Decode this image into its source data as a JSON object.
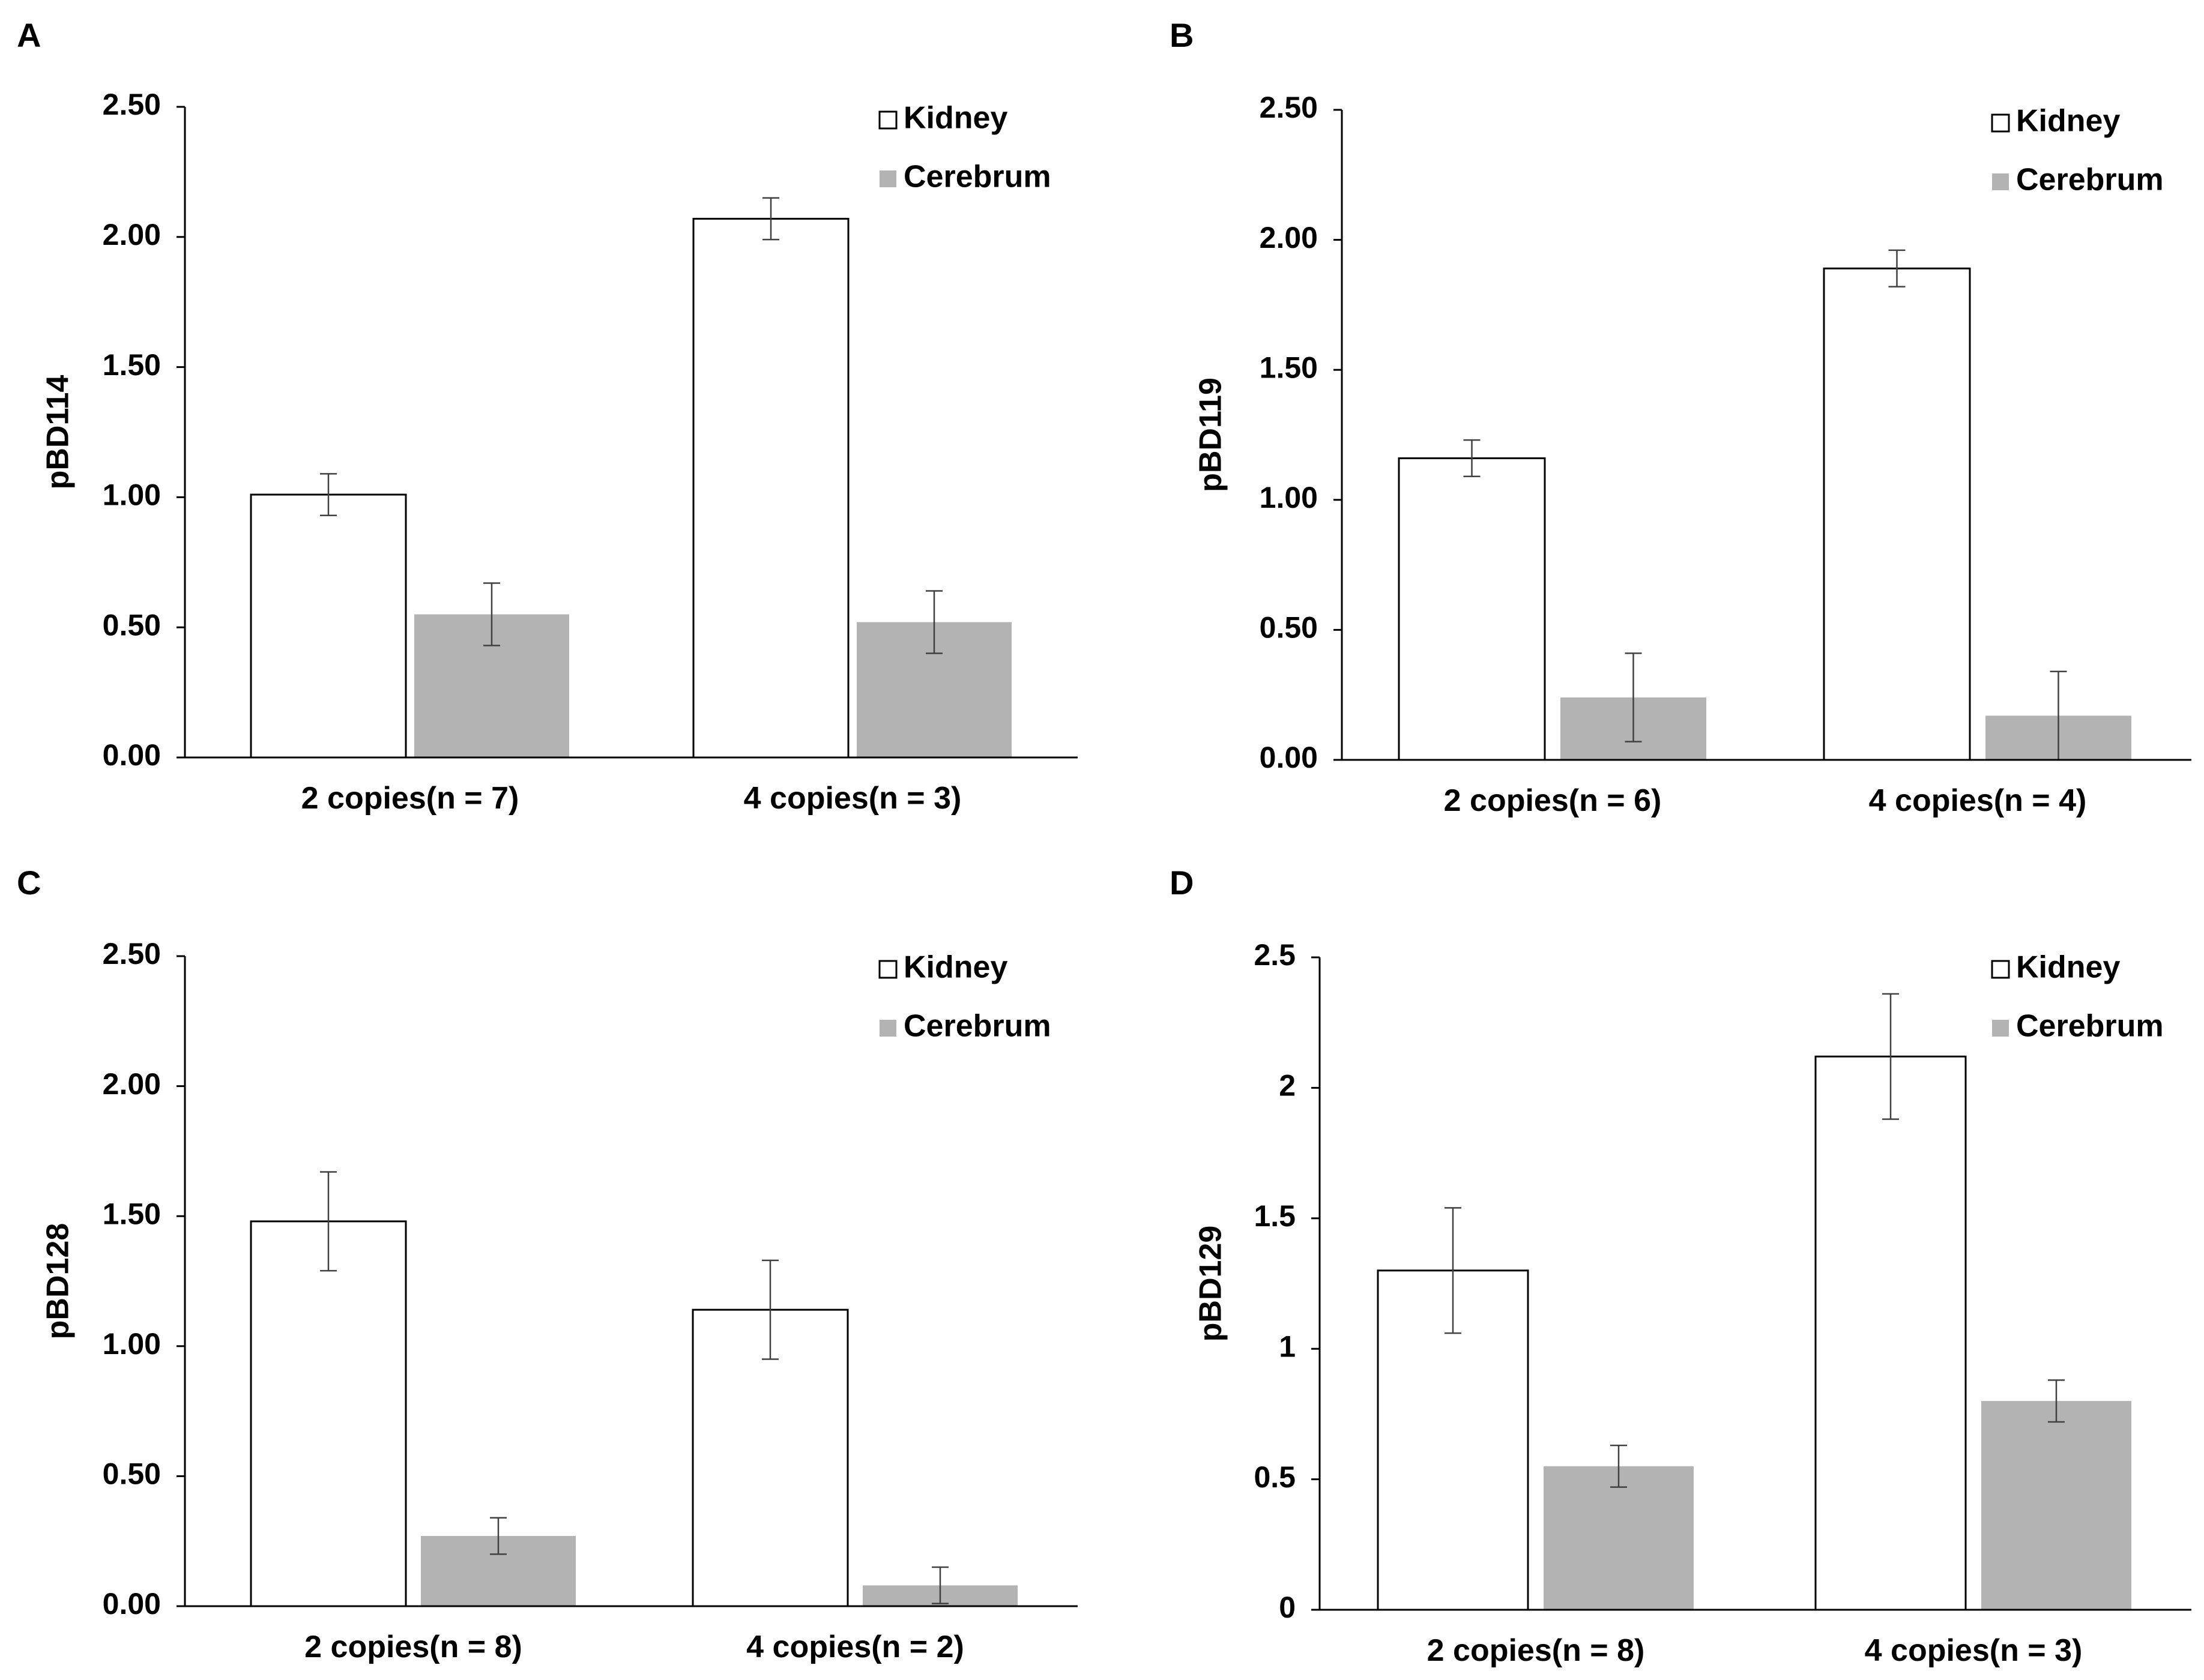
{
  "legend_labels": {
    "kidney": "Kidney",
    "cerebrum": "Cerebrum"
  },
  "colors": {
    "kidney_fill": "#ffffff",
    "kidney_stroke": "#000000",
    "cerebrum_fill": "#b3b3b3",
    "axis": "#000000",
    "error_bar": "#404040"
  },
  "chart_data": [
    {
      "panel": "A",
      "type": "bar",
      "ylabel": "pBD114",
      "ylim": [
        0,
        2.5
      ],
      "yticks": [
        "0.00",
        "0.50",
        "1.00",
        "1.50",
        "2.00",
        "2.50"
      ],
      "categories": [
        "2 copies(n = 7)",
        "4 copies(n = 3)"
      ],
      "legend_position": "top-right",
      "series": [
        {
          "name": "Kidney",
          "values": [
            1.01,
            2.07
          ],
          "errors": [
            0.08,
            0.08
          ]
        },
        {
          "name": "Cerebrum",
          "values": [
            0.55,
            0.52
          ],
          "errors": [
            0.12,
            0.12
          ]
        }
      ]
    },
    {
      "panel": "B",
      "type": "bar",
      "ylabel": "pBD119",
      "ylim": [
        0,
        2.5
      ],
      "yticks": [
        "0.00",
        "0.50",
        "1.00",
        "1.50",
        "2.00",
        "2.50"
      ],
      "categories": [
        "2 copies(n = 6)",
        "4 copies(n = 4)"
      ],
      "legend_position": "top-right",
      "series": [
        {
          "name": "Kidney",
          "values": [
            1.16,
            1.89
          ],
          "errors": [
            0.07,
            0.07
          ]
        },
        {
          "name": "Cerebrum",
          "values": [
            0.24,
            0.17
          ],
          "errors": [
            0.17,
            0.17
          ]
        }
      ]
    },
    {
      "panel": "C",
      "type": "bar",
      "ylabel": "pBD128",
      "ylim": [
        0,
        2.5
      ],
      "yticks": [
        "0.00",
        "0.50",
        "1.00",
        "1.50",
        "2.00",
        "2.50"
      ],
      "categories": [
        "2 copies(n = 8)",
        "4 copies(n = 2)"
      ],
      "legend_position": "top-right",
      "series": [
        {
          "name": "Kidney",
          "values": [
            1.48,
            1.14
          ],
          "errors": [
            0.19,
            0.19
          ]
        },
        {
          "name": "Cerebrum",
          "values": [
            0.27,
            0.08
          ],
          "errors": [
            0.07,
            0.07
          ]
        }
      ]
    },
    {
      "panel": "D",
      "type": "bar",
      "ylabel": "pBD129",
      "ylim": [
        0,
        2.5
      ],
      "yticks": [
        "0",
        "0.5",
        "1",
        "1.5",
        "2",
        "2.5"
      ],
      "categories": [
        "2 copies(n = 8)",
        "4 copies(n = 3)"
      ],
      "legend_position": "top-right",
      "series": [
        {
          "name": "Kidney",
          "values": [
            1.3,
            2.12
          ],
          "errors": [
            0.24,
            0.24
          ]
        },
        {
          "name": "Cerebrum",
          "values": [
            0.55,
            0.8
          ],
          "errors": [
            0.08,
            0.08
          ]
        }
      ]
    }
  ]
}
